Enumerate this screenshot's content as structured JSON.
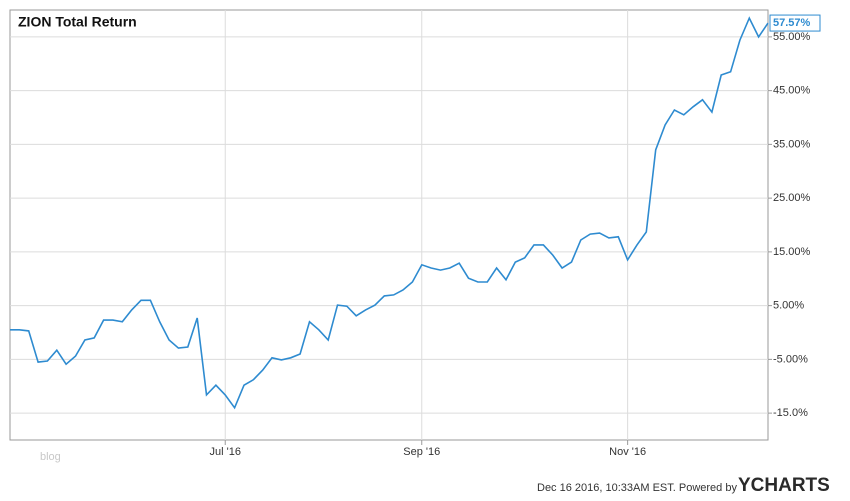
{
  "chart_data": {
    "type": "line",
    "title": "ZION Total Return",
    "categories": [
      null,
      null,
      null,
      null,
      null,
      null,
      null,
      null,
      null,
      null,
      null,
      null,
      null,
      null,
      null,
      null,
      null,
      null,
      null,
      null,
      null,
      null,
      null,
      "Jul '16",
      null,
      null,
      null,
      null,
      null,
      null,
      null,
      null,
      null,
      null,
      null,
      null,
      null,
      null,
      null,
      null,
      null,
      null,
      null,
      null,
      "Sep '16",
      null,
      null,
      null,
      null,
      null,
      null,
      null,
      null,
      null,
      null,
      null,
      null,
      null,
      null,
      null,
      null,
      null,
      null,
      null,
      null,
      null,
      "Nov '16",
      null,
      null,
      null,
      null,
      null,
      null,
      null,
      null,
      null,
      null,
      null,
      null,
      null,
      null,
      null
    ],
    "values": [
      0.5,
      0.5,
      0.3,
      -5.5,
      -5.3,
      -3.3,
      -5.9,
      -4.4,
      -1.4,
      -1.0,
      2.3,
      2.3,
      2.0,
      4.2,
      6.0,
      6.0,
      2.0,
      -1.4,
      -2.9,
      -2.7,
      2.7,
      -11.6,
      -9.8,
      -11.6,
      -14.0,
      -9.8,
      -8.8,
      -7.0,
      -4.7,
      -5.1,
      -4.7,
      -4.0,
      2.0,
      0.5,
      -1.4,
      5.1,
      4.9,
      3.1,
      4.2,
      5.1,
      6.8,
      7.0,
      7.9,
      9.4,
      12.6,
      12.0,
      11.6,
      12.0,
      12.9,
      10.1,
      9.4,
      9.4,
      12.0,
      9.8,
      13.1,
      13.9,
      16.3,
      16.3,
      14.4,
      12.0,
      13.1,
      17.2,
      18.3,
      18.5,
      17.6,
      17.8,
      13.5,
      16.3,
      18.7,
      34.0,
      38.6,
      41.4,
      40.5,
      42.0,
      43.3,
      41.0,
      47.9,
      48.5,
      54.4,
      58.5,
      55.0,
      57.57
    ],
    "value_labels": [
      null,
      null,
      null,
      null,
      null,
      null,
      null,
      null,
      null,
      null,
      null,
      null,
      null,
      null,
      null,
      null,
      null,
      null,
      null,
      null,
      null,
      null,
      null,
      null,
      null,
      null,
      null,
      null,
      null,
      null,
      null,
      null,
      null,
      null,
      null,
      null,
      null,
      null,
      null,
      null,
      null,
      null,
      null,
      null,
      null,
      null,
      null,
      null,
      null,
      null,
      null,
      null,
      null,
      null,
      null,
      null,
      null,
      null,
      null,
      null,
      null,
      null,
      null,
      null,
      null,
      null,
      null,
      null,
      null,
      null,
      null,
      null,
      null,
      null,
      null,
      null,
      null,
      null,
      null,
      null,
      null,
      "57.57%"
    ],
    "color": "#2e8bd0",
    "ylim": [
      -20,
      60
    ],
    "yticks": [
      {
        "value": -15,
        "label": "-15.0%"
      },
      {
        "value": -5,
        "label": "-5.00%"
      },
      {
        "value": 5,
        "label": "5.00%"
      },
      {
        "value": 15,
        "label": "15.00%"
      },
      {
        "value": 25,
        "label": "25.00%"
      },
      {
        "value": 35,
        "label": "35.00%"
      },
      {
        "value": 45,
        "label": "45.00%"
      },
      {
        "value": 55,
        "label": "55.00%"
      }
    ],
    "grid": true
  },
  "footer": {
    "timestamp": "Dec 16 2016, 10:33AM EST. Powered by",
    "brand": "YCHARTS",
    "watermark": "blog"
  }
}
